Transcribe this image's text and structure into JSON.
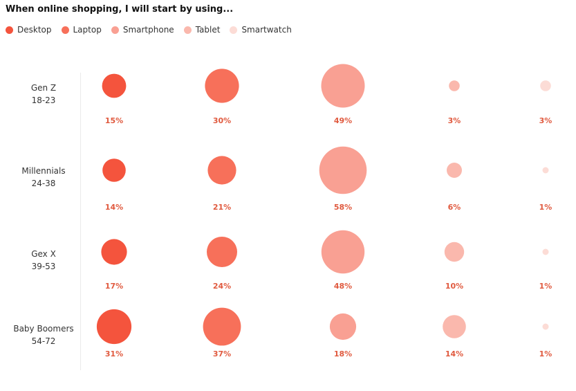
{
  "title": "When online shopping, I will start by using...",
  "legend": [
    {
      "label": "Desktop",
      "color": "#f4543d"
    },
    {
      "label": "Laptop",
      "color": "#f7705a"
    },
    {
      "label": "Smartphone",
      "color": "#f9a093"
    },
    {
      "label": "Tablet",
      "color": "#fab8ad"
    },
    {
      "label": "Smartwatch",
      "color": "#fcdcd6"
    }
  ],
  "chart_data": {
    "type": "scatter",
    "title": "When online shopping, I will start by using...",
    "categories": [
      "Desktop",
      "Laptop",
      "Smartphone",
      "Tablet",
      "Smartwatch"
    ],
    "series": [
      {
        "name": "Gen Z",
        "age": "18-23",
        "values": [
          15,
          30,
          49,
          3,
          3
        ],
        "labels": [
          "15%",
          "30%",
          "49%",
          "3%",
          "3%"
        ]
      },
      {
        "name": "Millennials",
        "age": "24-38",
        "values": [
          14,
          21,
          58,
          6,
          1
        ],
        "labels": [
          "14%",
          "21%",
          "58%",
          "6%",
          "1%"
        ]
      },
      {
        "name": "Gex X",
        "age": "39-53",
        "values": [
          17,
          24,
          48,
          10,
          1
        ],
        "labels": [
          "17%",
          "24%",
          "48%",
          "10%",
          "1%"
        ]
      },
      {
        "name": "Baby Boomers",
        "age": "54-72",
        "values": [
          31,
          37,
          18,
          14,
          1
        ],
        "labels": [
          "31%",
          "37%",
          "18%",
          "14%",
          "1%"
        ]
      }
    ],
    "grid": false,
    "legend_position": "top-left"
  }
}
